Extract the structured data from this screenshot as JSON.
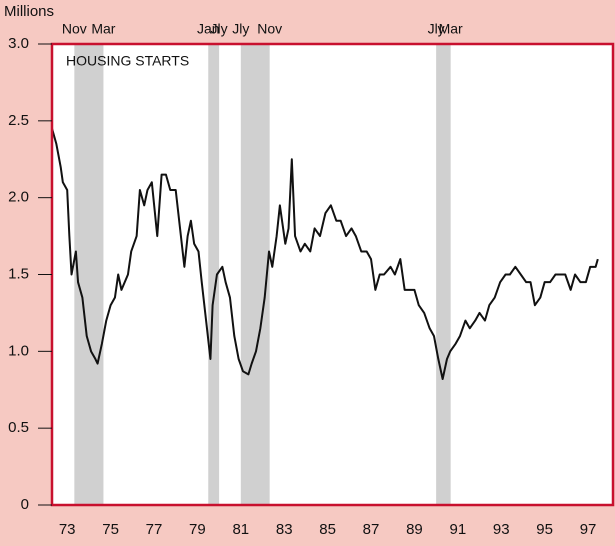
{
  "chart_data": {
    "type": "line",
    "title": "HOUSING STARTS",
    "y_label": "Millions",
    "x": [
      72.8,
      73.0,
      73.2,
      73.3,
      73.5,
      73.6,
      73.7,
      73.9,
      74.0,
      74.2,
      74.4,
      74.6,
      74.8,
      74.9,
      75.1,
      75.3,
      75.5,
      75.7,
      75.85,
      76.0,
      76.3,
      76.45,
      76.7,
      76.85,
      77.05,
      77.2,
      77.4,
      77.65,
      77.85,
      78.05,
      78.25,
      78.5,
      78.7,
      78.9,
      79.05,
      79.2,
      79.35,
      79.55,
      79.7,
      79.9,
      80.1,
      80.2,
      80.4,
      80.65,
      80.8,
      81.0,
      81.2,
      81.4,
      81.6,
      81.85,
      82.0,
      82.2,
      82.4,
      82.6,
      82.8,
      82.95,
      83.15,
      83.3,
      83.55,
      83.7,
      83.85,
      84.0,
      84.25,
      84.45,
      84.7,
      84.9,
      85.15,
      85.4,
      85.65,
      85.9,
      86.1,
      86.35,
      86.6,
      86.8,
      87.05,
      87.3,
      87.5,
      87.7,
      87.9,
      88.1,
      88.4,
      88.6,
      88.85,
      89.05,
      89.25,
      89.5,
      89.7,
      89.95,
      90.2,
      90.4,
      90.6,
      90.8,
      91.0,
      91.15,
      91.4,
      91.6,
      91.85,
      92.05,
      92.3,
      92.5,
      92.75,
      92.95,
      93.2,
      93.45,
      93.7,
      93.9,
      94.15,
      94.4,
      94.65,
      94.85,
      95.05,
      95.3,
      95.5,
      95.75,
      96.0,
      96.2,
      96.45,
      96.7,
      96.9,
      97.15,
      97.4,
      97.6,
      97.85,
      97.95
    ],
    "series": [
      {
        "name": "Housing starts",
        "color": "#111111",
        "values": [
          2.45,
          2.35,
          2.2,
          2.1,
          2.05,
          1.75,
          1.5,
          1.65,
          1.45,
          1.35,
          1.1,
          1.0,
          0.95,
          0.92,
          1.05,
          1.2,
          1.3,
          1.35,
          1.5,
          1.4,
          1.5,
          1.65,
          1.75,
          2.05,
          1.95,
          2.05,
          2.1,
          1.75,
          2.15,
          2.15,
          2.05,
          2.05,
          1.8,
          1.55,
          1.75,
          1.85,
          1.7,
          1.65,
          1.45,
          1.2,
          0.95,
          1.3,
          1.5,
          1.55,
          1.45,
          1.35,
          1.1,
          0.95,
          0.87,
          0.85,
          0.92,
          1.0,
          1.15,
          1.35,
          1.65,
          1.55,
          1.75,
          1.95,
          1.7,
          1.8,
          2.25,
          1.75,
          1.65,
          1.7,
          1.65,
          1.8,
          1.75,
          1.9,
          1.95,
          1.85,
          1.85,
          1.75,
          1.8,
          1.75,
          1.65,
          1.65,
          1.6,
          1.4,
          1.5,
          1.5,
          1.55,
          1.5,
          1.6,
          1.4,
          1.4,
          1.4,
          1.3,
          1.25,
          1.15,
          1.1,
          0.95,
          0.82,
          0.95,
          1.0,
          1.05,
          1.1,
          1.2,
          1.15,
          1.2,
          1.25,
          1.2,
          1.3,
          1.35,
          1.45,
          1.5,
          1.5,
          1.55,
          1.5,
          1.45,
          1.45,
          1.3,
          1.35,
          1.45,
          1.45,
          1.5,
          1.5,
          1.5,
          1.4,
          1.5,
          1.45,
          1.45,
          1.55,
          1.55,
          1.6
        ]
      }
    ],
    "recessions": [
      {
        "start": 73.83,
        "end": 75.17,
        "start_label": "Nov",
        "end_label": "Mar"
      },
      {
        "start": 80.0,
        "end": 80.5,
        "start_label": "Jan",
        "end_label": "Jly"
      },
      {
        "start": 81.5,
        "end": 82.83,
        "start_label": "Jly",
        "end_label": "Nov"
      },
      {
        "start": 90.5,
        "end": 91.17,
        "start_label": "Jly",
        "end_label": "Mar"
      }
    ],
    "recession_color": "#d0d0d0",
    "xlim": [
      72.8,
      98.65
    ],
    "xticks": [
      73,
      75,
      77,
      79,
      81,
      83,
      85,
      87,
      89,
      91,
      93,
      95,
      97
    ],
    "ylim": [
      0,
      3
    ],
    "yticks": [
      0,
      0.5,
      {
        "value": 1,
        "label": "1.0"
      },
      1.5,
      {
        "value": 2,
        "label": "2.0"
      },
      2.5,
      {
        "value": 3,
        "label": "3.0"
      }
    ]
  }
}
